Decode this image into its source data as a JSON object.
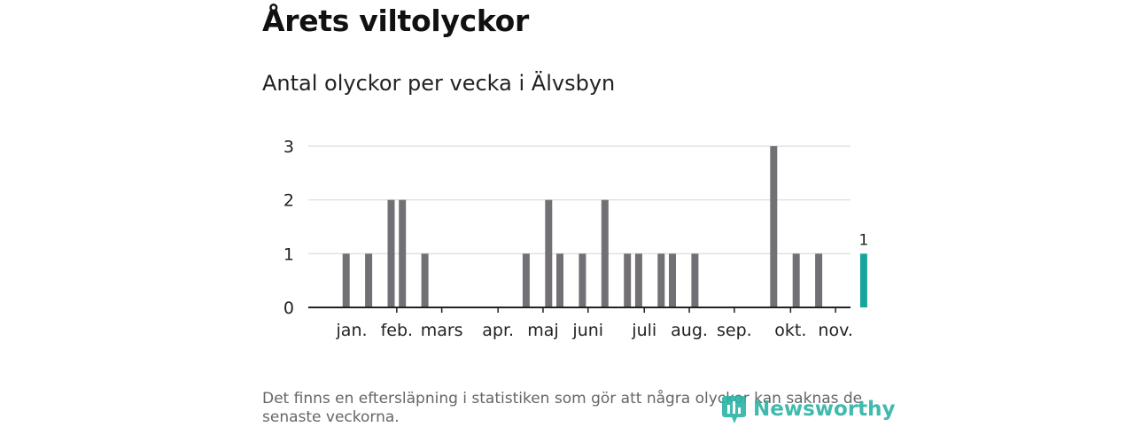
{
  "title": "Årets viltolyckor",
  "subtitle": "Antal olyckor per vecka i Älvsbyn",
  "footnote": "Det finns en eftersläpning i statistiken som gör att några olyckor kan saknas de senaste veckorna.",
  "brand": {
    "name": "Newsworthy",
    "color": "#2bb3a5"
  },
  "colors": {
    "bar": "#727075",
    "highlight": "#17a59a",
    "grid": "#d9d9d9",
    "axis": "#222222"
  },
  "chart_data": {
    "type": "bar",
    "title": "Antal olyckor per vecka i Älvsbyn",
    "xlabel": "",
    "ylabel": "",
    "ylim": [
      0,
      3
    ],
    "yticks": [
      0,
      1,
      2,
      3
    ],
    "weeks": [
      1,
      2,
      3,
      4,
      5,
      6,
      7,
      8,
      9,
      10,
      11,
      12,
      13,
      14,
      15,
      16,
      17,
      18,
      19,
      20,
      21,
      22,
      23,
      24,
      25,
      26,
      27,
      28,
      29,
      30,
      31,
      32,
      33,
      34,
      35,
      36,
      37,
      38,
      39,
      40,
      41,
      42,
      43,
      44,
      45,
      46,
      47,
      48
    ],
    "values": [
      0,
      1,
      0,
      1,
      0,
      2,
      2,
      0,
      1,
      0,
      0,
      0,
      0,
      0,
      0,
      0,
      0,
      1,
      0,
      2,
      1,
      0,
      1,
      0,
      2,
      0,
      1,
      1,
      0,
      1,
      1,
      0,
      1,
      0,
      0,
      0,
      0,
      0,
      0,
      3,
      0,
      1,
      0,
      1,
      0,
      0,
      0,
      1
    ],
    "highlight_week": 48,
    "highlight_label": "1",
    "month_labels": [
      {
        "label": "jan.",
        "week": 2.5
      },
      {
        "label": "feb.",
        "week": 6.5
      },
      {
        "label": "mars",
        "week": 10.5
      },
      {
        "label": "apr.",
        "week": 15.5
      },
      {
        "label": "maj",
        "week": 19.5
      },
      {
        "label": "juni",
        "week": 23.5
      },
      {
        "label": "juli",
        "week": 28.5
      },
      {
        "label": "aug.",
        "week": 32.5
      },
      {
        "label": "sep.",
        "week": 36.5
      },
      {
        "label": "okt.",
        "week": 41.5
      },
      {
        "label": "nov.",
        "week": 45.5
      }
    ],
    "month_ticks": [
      6.5,
      10.5,
      15.5,
      19.5,
      23.5,
      28.5,
      32.5,
      36.5,
      41.5,
      45.5
    ]
  }
}
